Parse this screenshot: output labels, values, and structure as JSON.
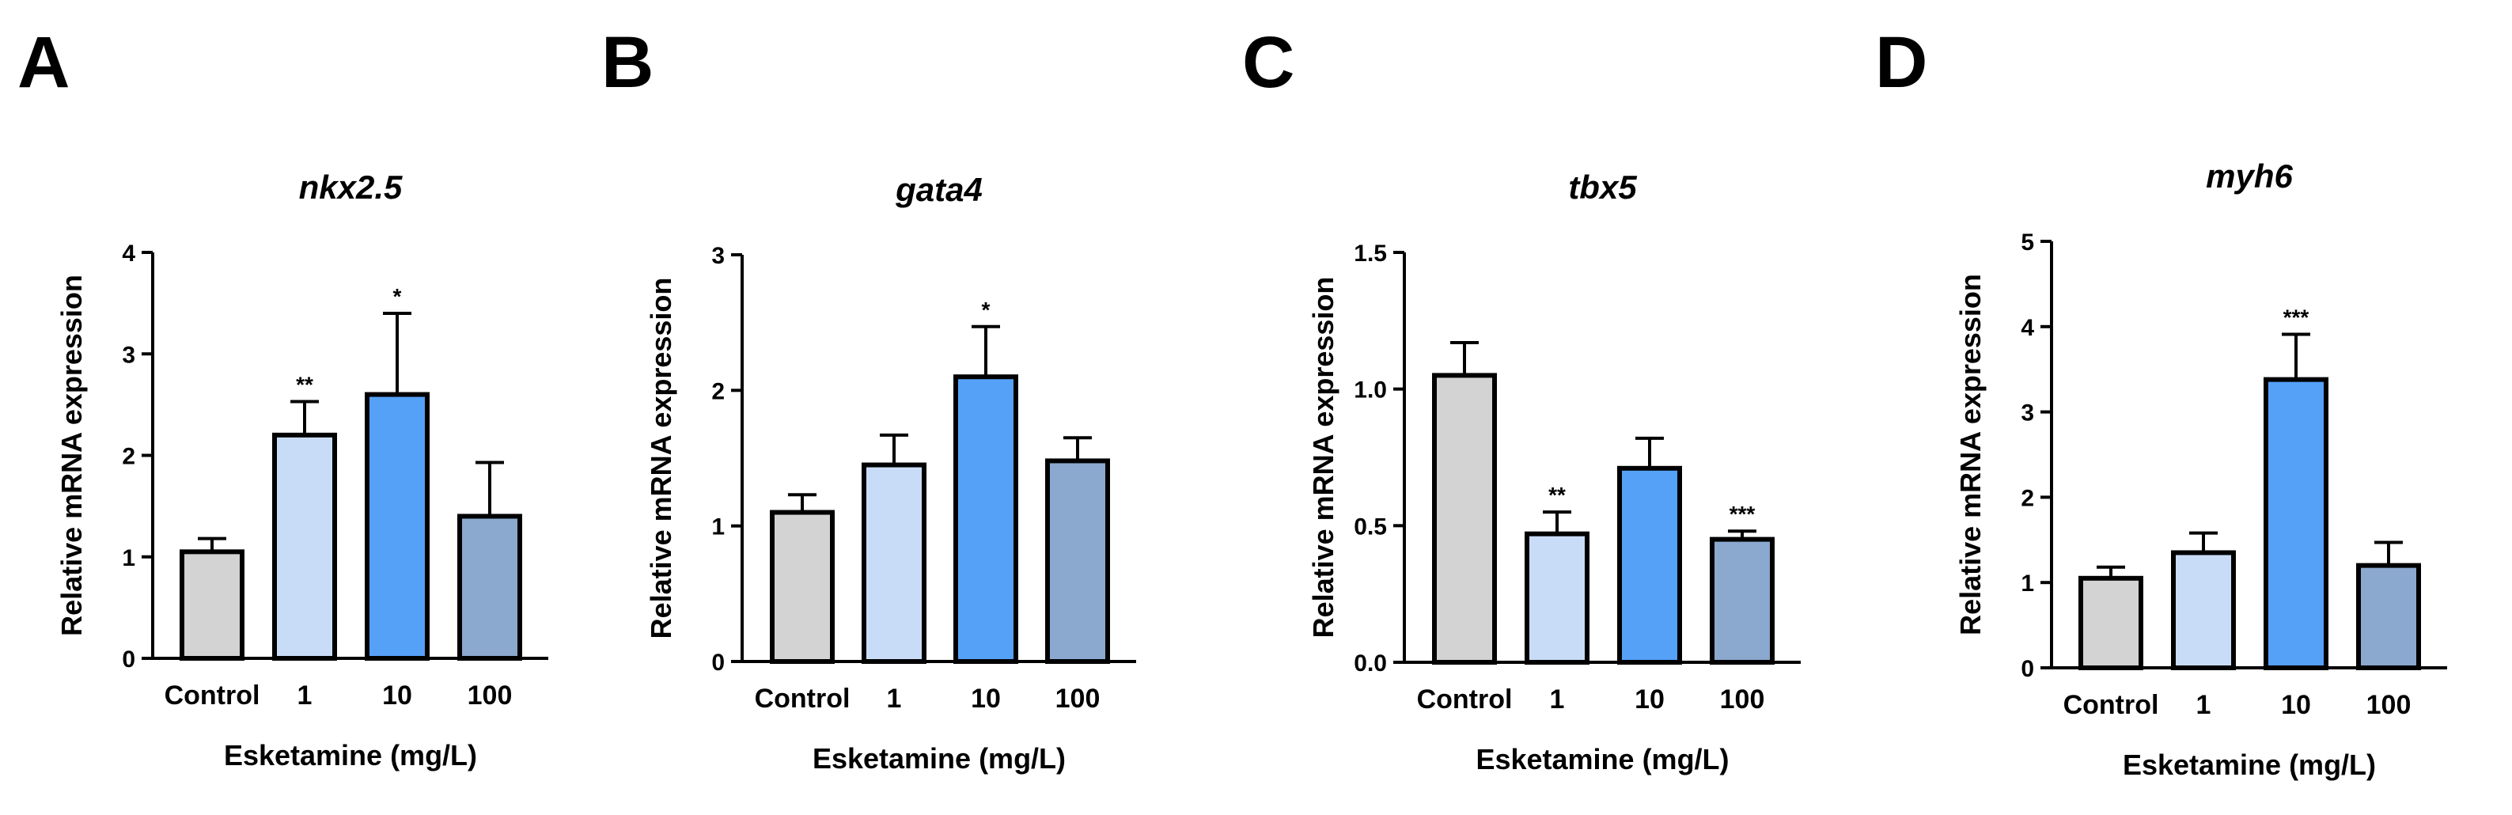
{
  "chart_data": [
    {
      "panel": "A",
      "type": "bar",
      "title": "nkx2.5",
      "xlabel": "Esketamine (mg/L)",
      "ylabel": "Relative mRNA expression",
      "categories": [
        "Control",
        "1",
        "10",
        "100"
      ],
      "values": [
        1.05,
        2.2,
        2.6,
        1.4
      ],
      "errors": [
        0.13,
        0.33,
        0.8,
        0.53
      ],
      "significance": [
        "",
        "**",
        "*",
        ""
      ],
      "ylim": [
        0,
        4
      ],
      "yticks": [
        "0",
        "1",
        "2",
        "3",
        "4"
      ]
    },
    {
      "panel": "B",
      "type": "bar",
      "title": "gata4",
      "xlabel": "Esketamine (mg/L)",
      "ylabel": "Relative mRNA expression",
      "categories": [
        "Control",
        "1",
        "10",
        "100"
      ],
      "values": [
        1.1,
        1.45,
        2.1,
        1.48
      ],
      "errors": [
        0.13,
        0.22,
        0.37,
        0.17
      ],
      "significance": [
        "",
        "",
        "*",
        ""
      ],
      "ylim": [
        0,
        3
      ],
      "yticks": [
        "0",
        "1",
        "2",
        "3"
      ]
    },
    {
      "panel": "C",
      "type": "bar",
      "title": "tbx5",
      "xlabel": "Esketamine (mg/L)",
      "ylabel": "Relative mRNA expression",
      "categories": [
        "Control",
        "1",
        "10",
        "100"
      ],
      "values": [
        1.05,
        0.47,
        0.71,
        0.45
      ],
      "errors": [
        0.12,
        0.08,
        0.11,
        0.03
      ],
      "significance": [
        "",
        "**",
        "",
        "***"
      ],
      "ylim": [
        0,
        1.5
      ],
      "yticks": [
        "0.0",
        "0.5",
        "1.0",
        "1.5"
      ]
    },
    {
      "panel": "D",
      "type": "bar",
      "title": "myh6",
      "xlabel": "Esketamine (mg/L)",
      "ylabel": "Relative mRNA expression",
      "categories": [
        "Control",
        "1",
        "10",
        "100"
      ],
      "values": [
        1.05,
        1.35,
        3.38,
        1.2
      ],
      "errors": [
        0.13,
        0.23,
        0.53,
        0.27
      ],
      "significance": [
        "",
        "",
        "***",
        ""
      ],
      "ylim": [
        0,
        5
      ],
      "yticks": [
        "0",
        "1",
        "2",
        "3",
        "4",
        "5"
      ]
    }
  ],
  "colors": {
    "bars": [
      "#d3d3d3",
      "#c9dcf7",
      "#56a1f8",
      "#8ba8cf"
    ],
    "axis": "#000000",
    "background": "#ffffff"
  }
}
